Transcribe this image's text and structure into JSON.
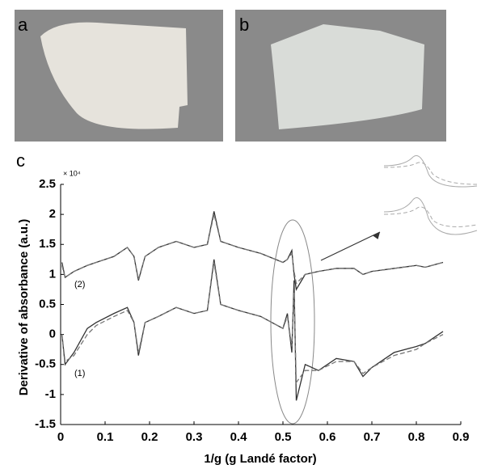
{
  "panel_labels": [
    "a",
    "b",
    "c"
  ],
  "chart_data": {
    "type": "line",
    "ylabel": "Derivative of absorbance (a.u.)",
    "xlabel": "1/g (g Landé factor)",
    "y_multiplier": "× 10⁴",
    "annotations": [
      "(2)",
      "(1)"
    ],
    "xlim": [
      0,
      0.9
    ],
    "xticks": [
      0,
      0.1,
      0.2,
      0.3,
      0.4,
      0.5,
      0.6,
      0.7,
      0.8,
      0.9
    ],
    "ylim": [
      -1.5,
      2.5
    ],
    "yticks": [
      -1.5,
      -1,
      -0.5,
      0,
      0.5,
      1,
      1.5,
      2,
      2.5
    ],
    "x": [
      0.003,
      0.01,
      0.03,
      0.06,
      0.08,
      0.12,
      0.15,
      0.165,
      0.175,
      0.19,
      0.22,
      0.26,
      0.3,
      0.33,
      0.345,
      0.36,
      0.4,
      0.45,
      0.5,
      0.51,
      0.52,
      0.525,
      0.53,
      0.55,
      0.58,
      0.62,
      0.66,
      0.68,
      0.7,
      0.75,
      0.8,
      0.82,
      0.86
    ],
    "series": [
      {
        "color": "#333333",
        "dash": false,
        "values": [
          1.2,
          0.95,
          1.05,
          1.15,
          1.2,
          1.3,
          1.45,
          1.3,
          0.9,
          1.3,
          1.45,
          1.55,
          1.45,
          1.5,
          2.05,
          1.55,
          1.45,
          1.35,
          1.2,
          1.25,
          1.4,
          1.0,
          0.75,
          1.0,
          1.05,
          1.1,
          1.1,
          1.0,
          1.05,
          1.1,
          1.15,
          1.12,
          1.2
        ]
      },
      {
        "color": "#777777",
        "dash": true,
        "values": [
          1.15,
          0.95,
          1.05,
          1.15,
          1.2,
          1.3,
          1.45,
          1.3,
          0.92,
          1.3,
          1.45,
          1.55,
          1.45,
          1.5,
          2.0,
          1.55,
          1.45,
          1.35,
          1.2,
          1.25,
          1.35,
          1.05,
          0.85,
          1.0,
          1.05,
          1.1,
          1.1,
          1.0,
          1.05,
          1.1,
          1.15,
          1.12,
          1.2
        ]
      },
      {
        "color": "#333333",
        "dash": false,
        "values": [
          0.0,
          -0.5,
          -0.3,
          0.1,
          0.2,
          0.35,
          0.45,
          0.2,
          -0.35,
          0.2,
          0.3,
          0.45,
          0.35,
          0.4,
          1.25,
          0.5,
          0.4,
          0.3,
          0.1,
          0.35,
          -0.3,
          0.9,
          -1.1,
          -0.5,
          -0.6,
          -0.4,
          -0.45,
          -0.7,
          -0.55,
          -0.3,
          -0.2,
          -0.15,
          0.05
        ]
      },
      {
        "color": "#777777",
        "dash": true,
        "values": [
          0.0,
          -0.45,
          -0.35,
          0.0,
          0.15,
          0.3,
          0.4,
          0.2,
          -0.3,
          0.2,
          0.3,
          0.45,
          0.35,
          0.4,
          1.2,
          0.5,
          0.4,
          0.3,
          0.1,
          0.3,
          -0.2,
          0.7,
          -0.8,
          -0.6,
          -0.6,
          -0.45,
          -0.45,
          -0.65,
          -0.55,
          -0.35,
          -0.25,
          -0.15,
          0.0
        ]
      }
    ]
  }
}
